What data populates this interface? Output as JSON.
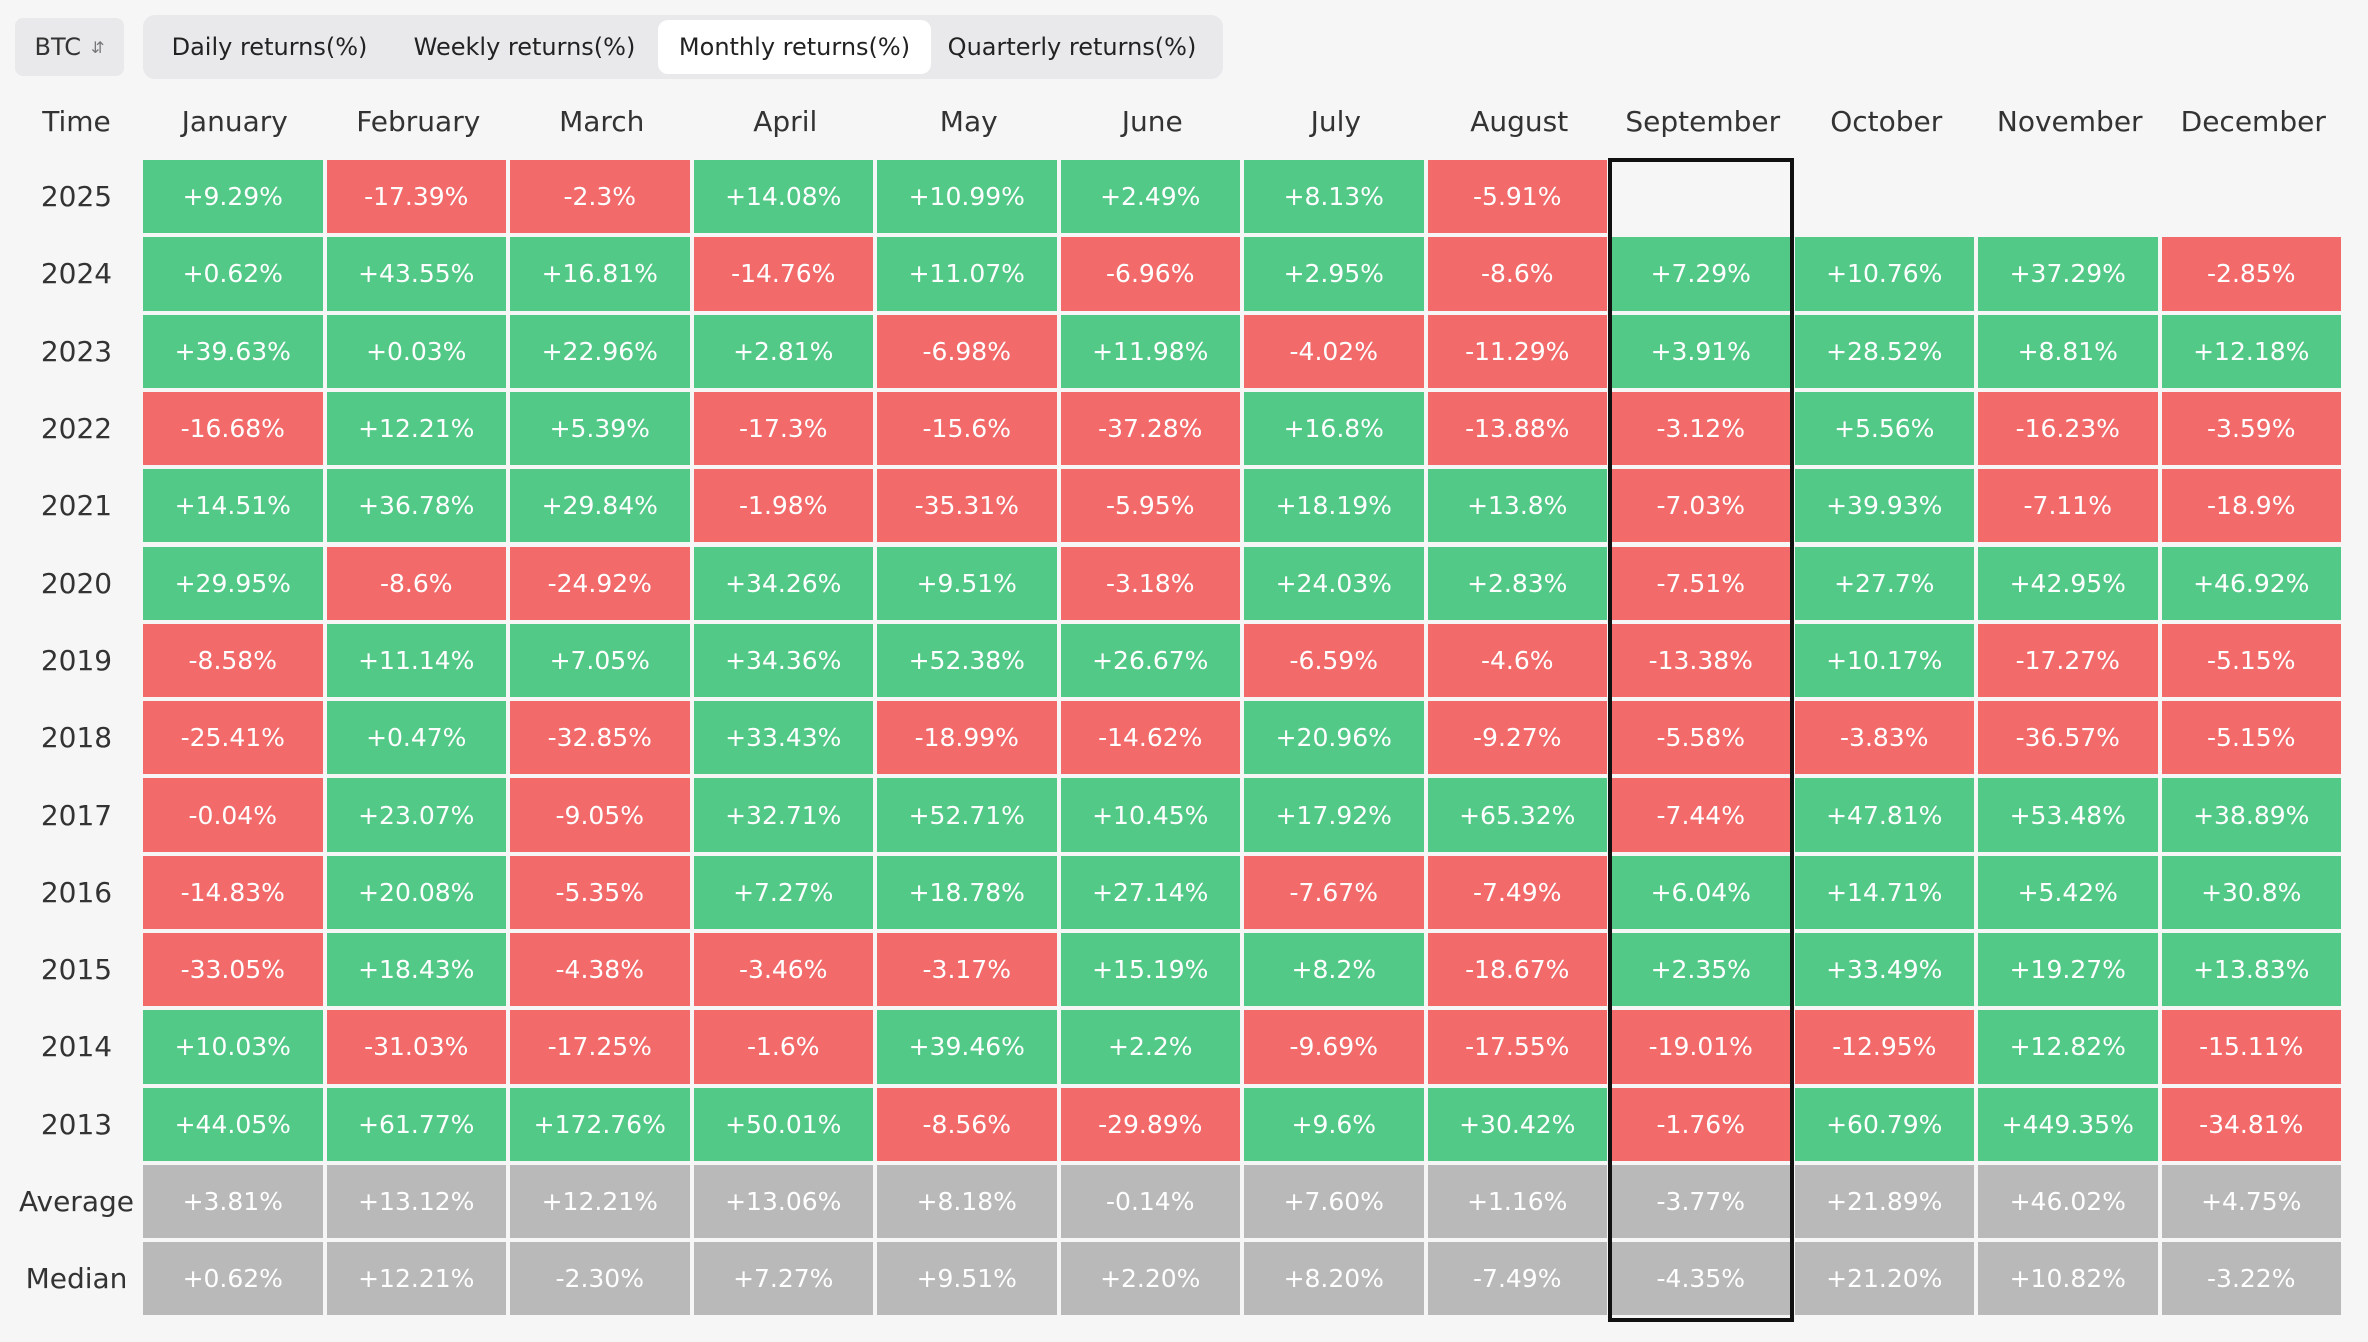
{
  "toolbar": {
    "asset": "BTC",
    "tabs": [
      "Daily returns(%)",
      "Weekly returns(%)",
      "Monthly returns(%)",
      "Quarterly returns(%)"
    ],
    "active_tab": 2
  },
  "table": {
    "columns": [
      "Time",
      "January",
      "February",
      "March",
      "April",
      "May",
      "June",
      "July",
      "August",
      "September",
      "October",
      "November",
      "December"
    ],
    "highlight_column": 9,
    "rows": [
      [
        "2025",
        "+9.29%",
        "-17.39%",
        "-2.3%",
        "+14.08%",
        "+10.99%",
        "+2.49%",
        "+8.13%",
        "-5.91%",
        null,
        null,
        null,
        null
      ],
      [
        "2024",
        "+0.62%",
        "+43.55%",
        "+16.81%",
        "-14.76%",
        "+11.07%",
        "-6.96%",
        "+2.95%",
        "-8.6%",
        "+7.29%",
        "+10.76%",
        "+37.29%",
        "-2.85%"
      ],
      [
        "2023",
        "+39.63%",
        "+0.03%",
        "+22.96%",
        "+2.81%",
        "-6.98%",
        "+11.98%",
        "-4.02%",
        "-11.29%",
        "+3.91%",
        "+28.52%",
        "+8.81%",
        "+12.18%"
      ],
      [
        "2022",
        "-16.68%",
        "+12.21%",
        "+5.39%",
        "-17.3%",
        "-15.6%",
        "-37.28%",
        "+16.8%",
        "-13.88%",
        "-3.12%",
        "+5.56%",
        "-16.23%",
        "-3.59%"
      ],
      [
        "2021",
        "+14.51%",
        "+36.78%",
        "+29.84%",
        "-1.98%",
        "-35.31%",
        "-5.95%",
        "+18.19%",
        "+13.8%",
        "-7.03%",
        "+39.93%",
        "-7.11%",
        "-18.9%"
      ],
      [
        "2020",
        "+29.95%",
        "-8.6%",
        "-24.92%",
        "+34.26%",
        "+9.51%",
        "-3.18%",
        "+24.03%",
        "+2.83%",
        "-7.51%",
        "+27.7%",
        "+42.95%",
        "+46.92%"
      ],
      [
        "2019",
        "-8.58%",
        "+11.14%",
        "+7.05%",
        "+34.36%",
        "+52.38%",
        "+26.67%",
        "-6.59%",
        "-4.6%",
        "-13.38%",
        "+10.17%",
        "-17.27%",
        "-5.15%"
      ],
      [
        "2018",
        "-25.41%",
        "+0.47%",
        "-32.85%",
        "+33.43%",
        "-18.99%",
        "-14.62%",
        "+20.96%",
        "-9.27%",
        "-5.58%",
        "-3.83%",
        "-36.57%",
        "-5.15%"
      ],
      [
        "2017",
        "-0.04%",
        "+23.07%",
        "-9.05%",
        "+32.71%",
        "+52.71%",
        "+10.45%",
        "+17.92%",
        "+65.32%",
        "-7.44%",
        "+47.81%",
        "+53.48%",
        "+38.89%"
      ],
      [
        "2016",
        "-14.83%",
        "+20.08%",
        "-5.35%",
        "+7.27%",
        "+18.78%",
        "+27.14%",
        "-7.67%",
        "-7.49%",
        "+6.04%",
        "+14.71%",
        "+5.42%",
        "+30.8%"
      ],
      [
        "2015",
        "-33.05%",
        "+18.43%",
        "-4.38%",
        "-3.46%",
        "-3.17%",
        "+15.19%",
        "+8.2%",
        "-18.67%",
        "+2.35%",
        "+33.49%",
        "+19.27%",
        "+13.83%"
      ],
      [
        "2014",
        "+10.03%",
        "-31.03%",
        "-17.25%",
        "-1.6%",
        "+39.46%",
        "+2.2%",
        "-9.69%",
        "-17.55%",
        "-19.01%",
        "-12.95%",
        "+12.82%",
        "-15.11%"
      ],
      [
        "2013",
        "+44.05%",
        "+61.77%",
        "+172.76%",
        "+50.01%",
        "-8.56%",
        "-29.89%",
        "+9.6%",
        "+30.42%",
        "-1.76%",
        "+60.79%",
        "+449.35%",
        "-34.81%"
      ]
    ],
    "summary_rows": [
      [
        "Average",
        "+3.81%",
        "+13.12%",
        "+12.21%",
        "+13.06%",
        "+8.18%",
        "-0.14%",
        "+7.60%",
        "+1.16%",
        "-3.77%",
        "+21.89%",
        "+46.02%",
        "+4.75%"
      ],
      [
        "Median",
        "+0.62%",
        "+12.21%",
        "-2.30%",
        "+7.27%",
        "+9.51%",
        "+2.20%",
        "+8.20%",
        "-7.49%",
        "-4.35%",
        "+21.20%",
        "+10.82%",
        "-3.22%"
      ]
    ]
  }
}
